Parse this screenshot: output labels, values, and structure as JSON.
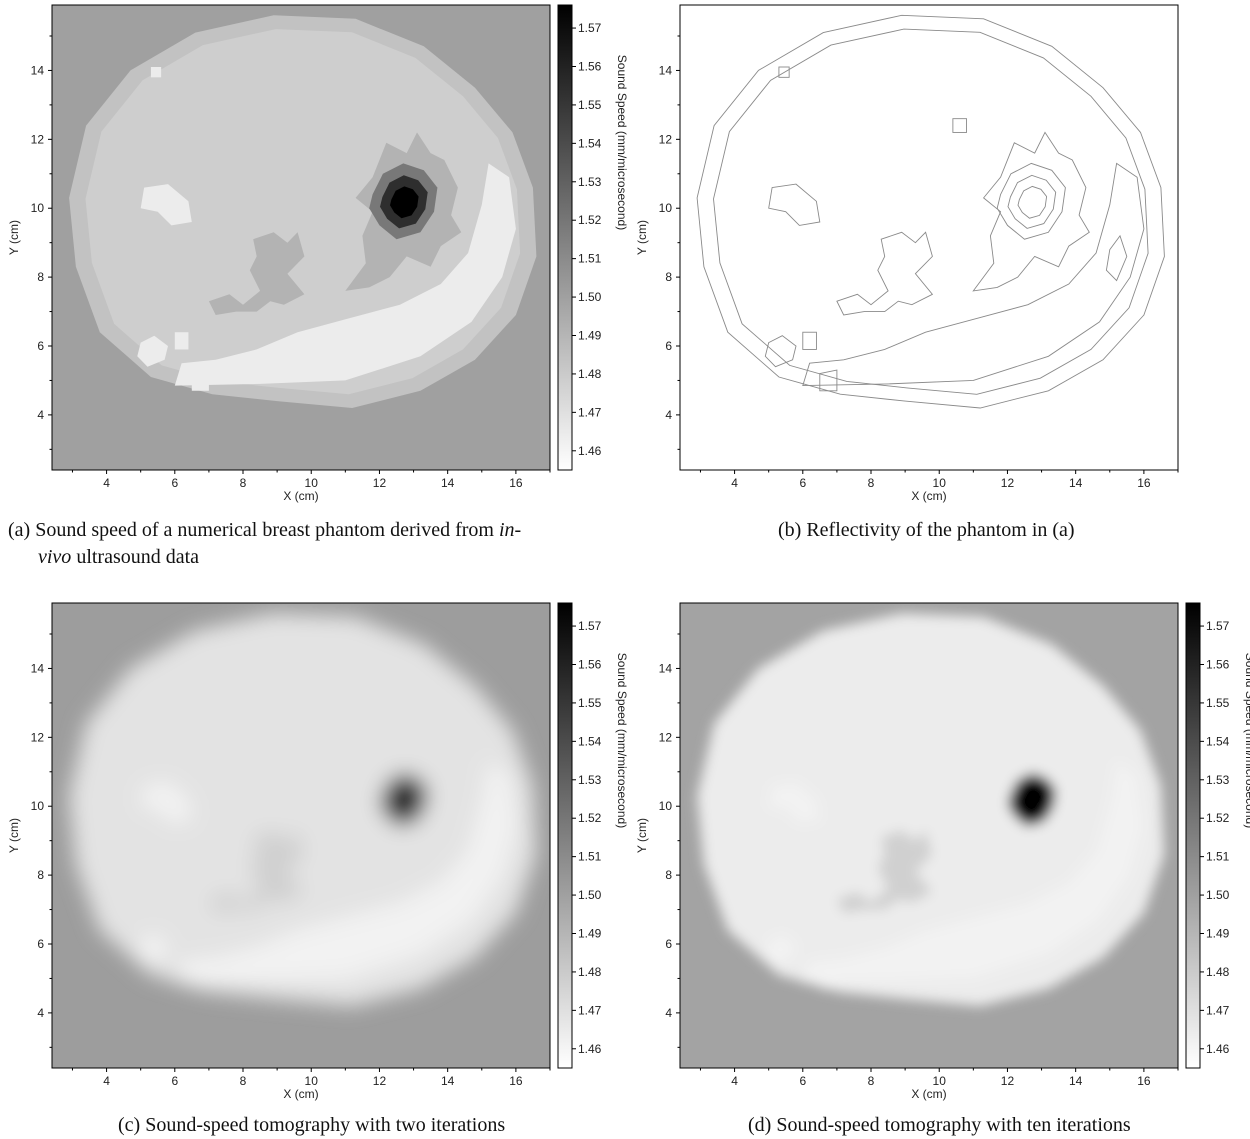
{
  "chart_data": [
    {
      "id": "a",
      "type": "heatmap",
      "render_mode": "sharp",
      "xlabel": "X (cm)",
      "ylabel": "Y (cm)",
      "xlim": [
        2.4,
        17.0
      ],
      "ylim": [
        2.4,
        15.9
      ],
      "xticks": [
        4,
        6,
        8,
        10,
        12,
        14,
        16
      ],
      "yticks": [
        4,
        6,
        8,
        10,
        12,
        14
      ],
      "colorbar": {
        "label": "Sound Speed (mm/microsecond)",
        "range": [
          1.455,
          1.576
        ],
        "ticks": [
          1.46,
          1.47,
          1.48,
          1.49,
          1.5,
          1.51,
          1.52,
          1.53,
          1.54,
          1.55,
          1.56,
          1.57
        ],
        "show_label": true
      },
      "colors": {
        "background": "#a0a0a0",
        "tissue": "#cecece",
        "boundary_ring": "#c2c2c2",
        "fat": "#ececec",
        "dense_region": "#b3b3b3",
        "lesion": "#000000"
      },
      "caption": {
        "prefix": "(a) Sound speed of a numerical breast phantom derived from ",
        "emph": "in-",
        "line2_emph": "vivo",
        "line2_rest": " ultrasound data"
      }
    },
    {
      "id": "b",
      "type": "heatmap",
      "render_mode": "contour",
      "xlabel": "X (cm)",
      "ylabel": "Y (cm)",
      "xlim": [
        2.4,
        17.0
      ],
      "ylim": [
        2.4,
        15.9
      ],
      "xticks": [
        4,
        6,
        8,
        10,
        12,
        14,
        16
      ],
      "yticks": [
        4,
        6,
        8,
        10,
        12,
        14
      ],
      "colors": {
        "background": "#ffffff",
        "contour": "#8a8a8a"
      },
      "caption": {
        "text": "(b) Reflectivity of the phantom in (a)"
      }
    },
    {
      "id": "c",
      "type": "heatmap",
      "render_mode": "blur2",
      "xlabel": "X (cm)",
      "ylabel": "Y (cm)",
      "xlim": [
        2.4,
        17.0
      ],
      "ylim": [
        2.4,
        15.9
      ],
      "xticks": [
        4,
        6,
        8,
        10,
        12,
        14,
        16
      ],
      "yticks": [
        4,
        6,
        8,
        10,
        12,
        14
      ],
      "colorbar": {
        "label": "Sound Speed (mm/microsecond)",
        "range": [
          1.455,
          1.576
        ],
        "ticks": [
          1.46,
          1.47,
          1.48,
          1.49,
          1.5,
          1.51,
          1.52,
          1.53,
          1.54,
          1.55,
          1.56,
          1.57
        ],
        "show_label": true
      },
      "colors": {
        "background": "#9d9d9d",
        "tissue": "#e3e3e3",
        "lesion": "#2e2e2e"
      },
      "caption": {
        "text": "(c) Sound-speed tomography with two iterations"
      }
    },
    {
      "id": "d",
      "type": "heatmap",
      "render_mode": "blur10",
      "xlabel": "X (cm)",
      "ylabel": "Y (cm)",
      "xlim": [
        2.4,
        17.0
      ],
      "ylim": [
        2.4,
        15.9
      ],
      "xticks": [
        4,
        6,
        8,
        10,
        12,
        14,
        16
      ],
      "yticks": [
        4,
        6,
        8,
        10,
        12,
        14
      ],
      "colorbar": {
        "label": "Sound Speed (mm/microsecond)",
        "range": [
          1.455,
          1.576
        ],
        "ticks": [
          1.46,
          1.47,
          1.48,
          1.49,
          1.5,
          1.51,
          1.52,
          1.53,
          1.54,
          1.55,
          1.56,
          1.57
        ],
        "show_label": true
      },
      "colors": {
        "background": "#a3a3a3",
        "tissue": "#ececec",
        "lesion": "#050505"
      },
      "caption": {
        "text": "(d) Sound-speed tomography with ten iterations"
      }
    }
  ]
}
